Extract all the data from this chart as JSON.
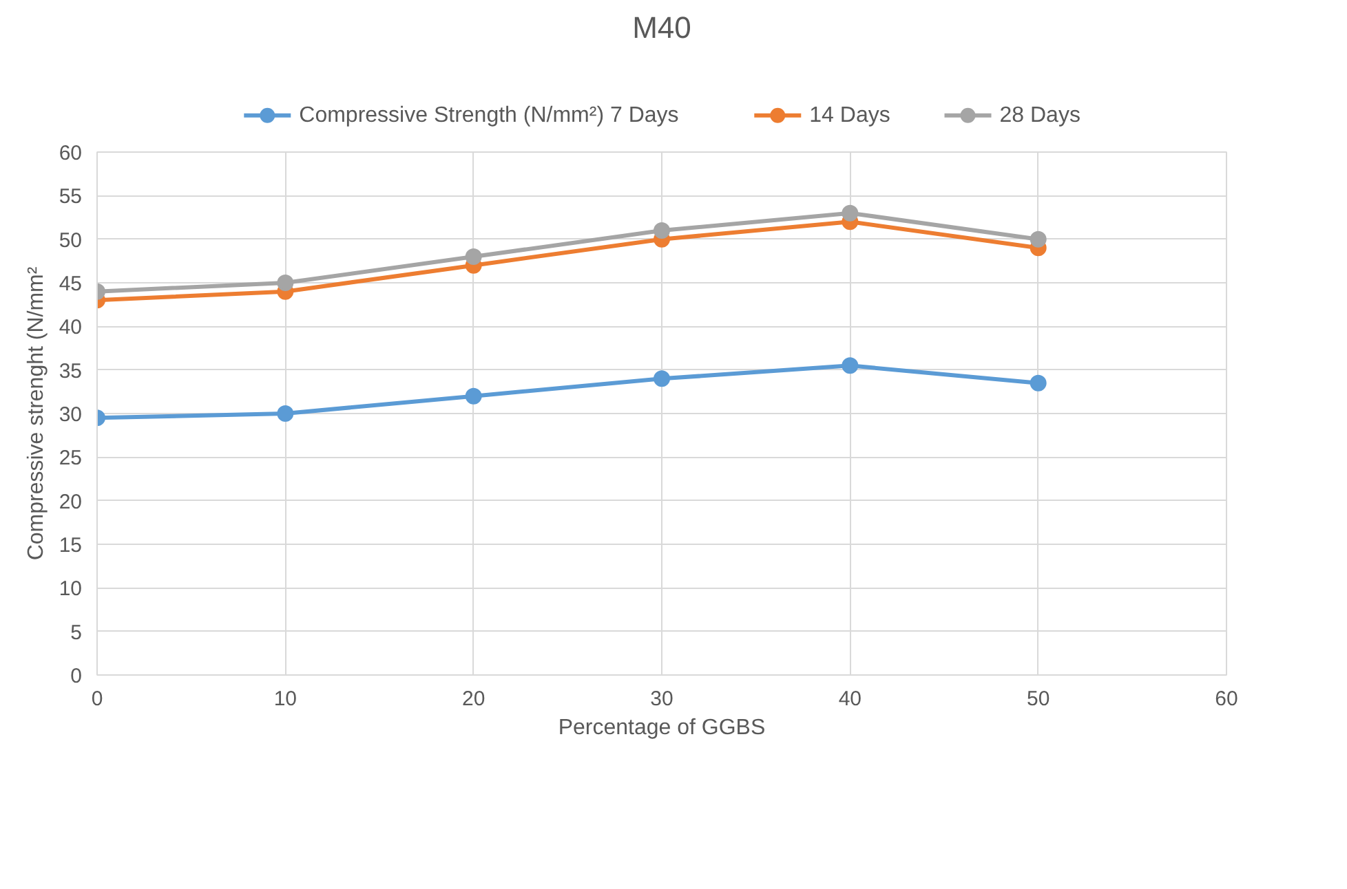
{
  "chart_data": {
    "type": "line",
    "title": "M40",
    "xlabel": "Percentage of GGBS",
    "ylabel": "Compressive strenght (N/mm²",
    "x": [
      0,
      10,
      20,
      30,
      40,
      50
    ],
    "xlim": [
      0,
      60
    ],
    "xticks": [
      0,
      10,
      20,
      30,
      40,
      50,
      60
    ],
    "ylim": [
      0,
      60
    ],
    "yticks": [
      0,
      5,
      10,
      15,
      20,
      25,
      30,
      35,
      40,
      45,
      50,
      55,
      60
    ],
    "grid": true,
    "legend": "top",
    "marker": "circle",
    "line_style": "solid",
    "series": [
      {
        "name": "Compressive Strength (N/mm²) 7 Days",
        "color": "#5b9bd5",
        "values": [
          29.5,
          30,
          32,
          34,
          35.5,
          33.5
        ]
      },
      {
        "name": "14 Days",
        "color": "#ed7d31",
        "values": [
          43,
          44,
          47,
          50,
          52,
          49
        ]
      },
      {
        "name": "28 Days",
        "color": "#a5a5a5",
        "values": [
          44,
          45,
          48,
          51,
          53,
          50
        ]
      }
    ]
  }
}
